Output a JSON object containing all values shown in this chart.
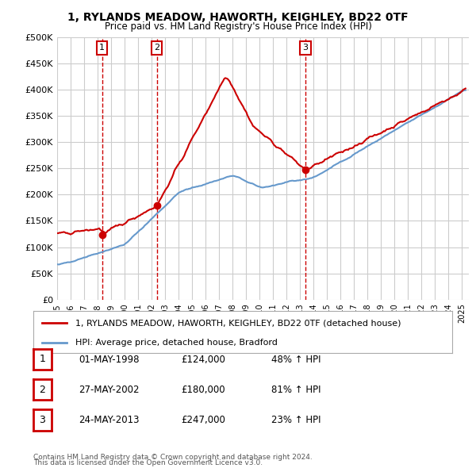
{
  "title": "1, RYLANDS MEADOW, HAWORTH, KEIGHLEY, BD22 0TF",
  "subtitle": "Price paid vs. HM Land Registry's House Price Index (HPI)",
  "ylabel_ticks": [
    "£0",
    "£50K",
    "£100K",
    "£150K",
    "£200K",
    "£250K",
    "£300K",
    "£350K",
    "£400K",
    "£450K",
    "£500K"
  ],
  "ytick_values": [
    0,
    50000,
    100000,
    150000,
    200000,
    250000,
    300000,
    350000,
    400000,
    450000,
    500000
  ],
  "xlim_start": 1995.0,
  "xlim_end": 2025.5,
  "ylim": [
    0,
    500000
  ],
  "sales": [
    {
      "num": 1,
      "date_num": 1998.33,
      "price": 124000,
      "label": "01-MAY-1998",
      "pct": "48%",
      "dir": "↑"
    },
    {
      "num": 2,
      "date_num": 2002.38,
      "price": 180000,
      "label": "27-MAY-2002",
      "pct": "81%",
      "dir": "↑"
    },
    {
      "num": 3,
      "date_num": 2013.38,
      "price": 247000,
      "label": "24-MAY-2013",
      "pct": "23%",
      "dir": "↑"
    }
  ],
  "legend_property_label": "1, RYLANDS MEADOW, HAWORTH, KEIGHLEY, BD22 0TF (detached house)",
  "legend_hpi_label": "HPI: Average price, detached house, Bradford",
  "footer1": "Contains HM Land Registry data © Crown copyright and database right 2024.",
  "footer2": "This data is licensed under the Open Government Licence v3.0.",
  "property_color": "#cc0000",
  "hpi_color": "#6699cc",
  "grid_color": "#cccccc",
  "background_color": "#ffffff",
  "table_border_color": "#cc0000"
}
